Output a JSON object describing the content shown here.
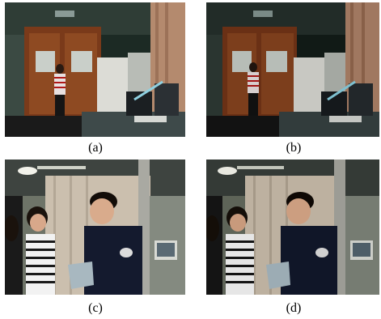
{
  "figure": {
    "panels": [
      {
        "id": "a",
        "caption": "(a)"
      },
      {
        "id": "b",
        "caption": "(b)"
      },
      {
        "id": "c",
        "caption": "(c)"
      },
      {
        "id": "d",
        "caption": "(d)"
      }
    ]
  }
}
